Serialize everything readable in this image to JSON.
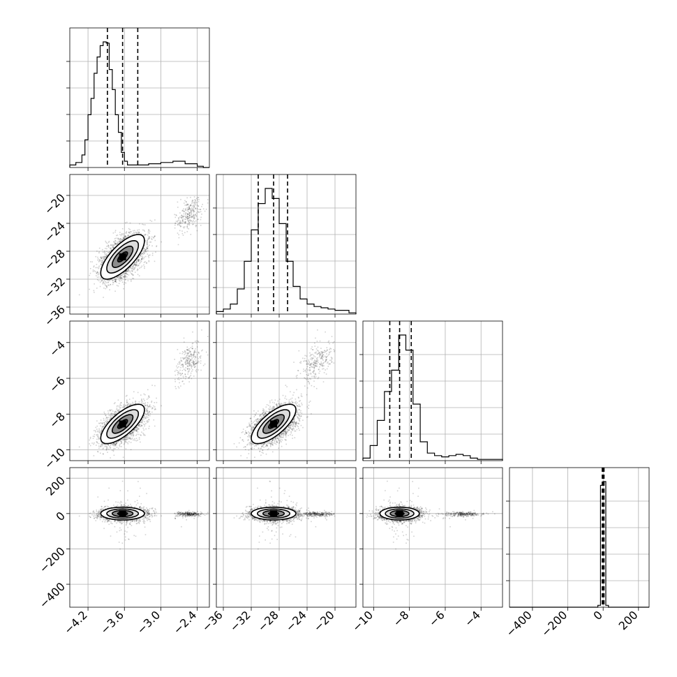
{
  "chart_data": {
    "type": "corner",
    "parameters": 4,
    "grid": true,
    "quantile_lines": "dashed",
    "axes": [
      {
        "range": [
          -4.5,
          -2.2
        ],
        "ticks": [
          -4.2,
          -3.6,
          -3.0,
          -2.4
        ],
        "tick_labels": [
          "−4.2",
          "−3.6",
          "−3.0",
          "−2.4"
        ]
      },
      {
        "range": [
          -37,
          -17
        ],
        "ticks": [
          -36,
          -32,
          -28,
          -24,
          -20
        ],
        "tick_labels": [
          "−36",
          "−32",
          "−28",
          "−24",
          "−20"
        ]
      },
      {
        "range": [
          -10.6,
          -2.8
        ],
        "ticks": [
          -10,
          -8,
          -6,
          -4
        ],
        "tick_labels": [
          "−10",
          "−8",
          "−6",
          "−4"
        ]
      },
      {
        "range": [
          -530,
          260
        ],
        "ticks": [
          -400,
          -200,
          0,
          200
        ],
        "tick_labels": [
          "−400",
          "−200",
          "0",
          "200"
        ]
      }
    ],
    "histograms": [
      {
        "bins": [
          -4.5,
          -4.4,
          -4.3,
          -4.25,
          -4.2,
          -4.15,
          -4.1,
          -4.05,
          -4.0,
          -3.95,
          -3.9,
          -3.85,
          -3.8,
          -3.75,
          -3.7,
          -3.65,
          -3.6,
          -3.55,
          -3.5,
          -3.45,
          -3.4,
          -3.35,
          -3.3,
          -3.2,
          -3.0,
          -2.8,
          -2.6,
          -2.4,
          -2.3,
          -2.2
        ],
        "counts": [
          0.02,
          0.04,
          0.1,
          0.22,
          0.42,
          0.55,
          0.75,
          0.88,
          0.97,
          1.0,
          0.99,
          0.78,
          0.62,
          0.42,
          0.28,
          0.12,
          0.05,
          0.02,
          0.02,
          0.02,
          0.02,
          0.02,
          0.02,
          0.03,
          0.04,
          0.05,
          0.03,
          0.01,
          0.0
        ]
      },
      {
        "bins": [
          -37,
          -36,
          -35,
          -34,
          -33,
          -32,
          -31,
          -30,
          -29,
          -28,
          -27,
          -26,
          -25,
          -24,
          -23,
          -22,
          -21,
          -20,
          -18,
          -17
        ],
        "counts": [
          0.02,
          0.04,
          0.08,
          0.2,
          0.42,
          0.67,
          0.88,
          1.0,
          0.92,
          0.72,
          0.42,
          0.22,
          0.12,
          0.08,
          0.06,
          0.05,
          0.04,
          0.03,
          0.01
        ]
      },
      {
        "bins": [
          -10.6,
          -10.2,
          -9.8,
          -9.4,
          -9.0,
          -8.6,
          -8.2,
          -7.8,
          -7.4,
          -7.0,
          -6.6,
          -6.2,
          -5.8,
          -5.4,
          -5.0,
          -4.6,
          -4.2,
          -3.8,
          -2.8
        ],
        "counts": [
          0.02,
          0.12,
          0.32,
          0.55,
          0.72,
          1.0,
          0.88,
          0.45,
          0.15,
          0.06,
          0.04,
          0.03,
          0.04,
          0.05,
          0.04,
          0.02,
          0.01,
          0.01
        ]
      },
      {
        "bins": [
          -530,
          -30,
          -15,
          0,
          15,
          30,
          260
        ],
        "counts": [
          0.0,
          0.015,
          0.97,
          1.0,
          0.015,
          0.0
        ]
      }
    ],
    "quantiles": [
      [
        -3.88,
        -3.63,
        -3.38
      ],
      [
        -31.0,
        -28.8,
        -26.8
      ],
      [
        -9.1,
        -8.55,
        -7.9
      ],
      [
        -5,
        0,
        5
      ]
    ],
    "cluster": {
      "main": {
        "mean": [
          -3.63,
          -28.8,
          -8.55,
          0
        ],
        "sd": [
          0.18,
          1.6,
          0.55,
          18
        ],
        "corr": 0.72
      },
      "tail": {
        "mean": [
          -2.55,
          -22.5,
          -5.0,
          0
        ],
        "sd": [
          0.12,
          1.3,
          0.55,
          6
        ]
      }
    }
  }
}
